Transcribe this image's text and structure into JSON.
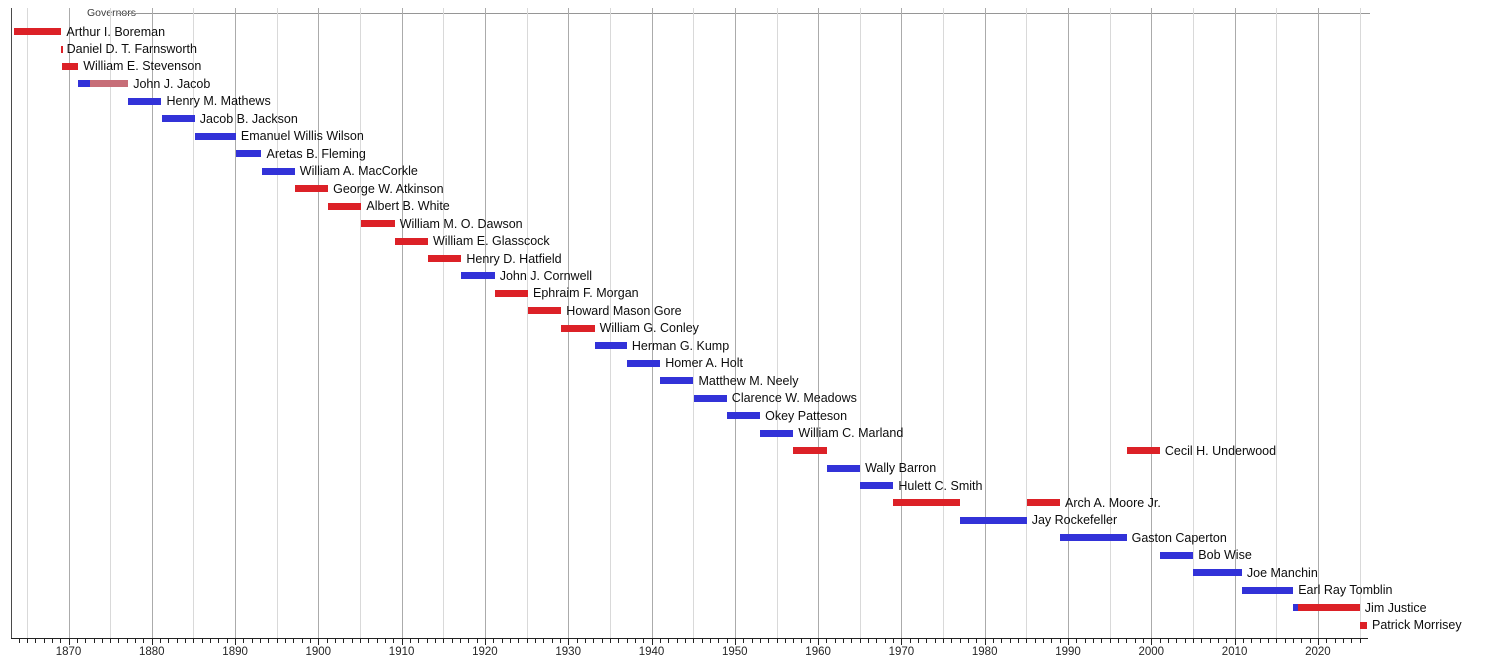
{
  "header": {
    "title": "Governors"
  },
  "chart_data": {
    "type": "bar",
    "subtype": "gantt-timeline",
    "title": "Governors",
    "xlabel": "",
    "ylabel": "",
    "grid": "vertical, every 5 years, darker each decade",
    "legend_position": "none",
    "axis": {
      "min_year": 1863.1,
      "max_year": 2025.9
    },
    "tick_years": [
      1870,
      1880,
      1890,
      1900,
      1910,
      1920,
      1930,
      1940,
      1950,
      1960,
      1970,
      1980,
      1990,
      2000,
      2010,
      2020
    ],
    "party_colors": {
      "R": "#dc2127",
      "D": "#3232d8",
      "I": "#c76e78"
    },
    "governors": [
      {
        "name": "Arthur I. Boreman",
        "terms": [
          {
            "start": 1863.47,
            "end": 1869.15,
            "party": "R"
          }
        ]
      },
      {
        "name": "Daniel D. T. Farnsworth",
        "terms": [
          {
            "start": 1869.15,
            "end": 1869.17,
            "party": "R"
          }
        ]
      },
      {
        "name": "William E. Stevenson",
        "terms": [
          {
            "start": 1869.17,
            "end": 1871.17,
            "party": "R"
          }
        ]
      },
      {
        "name": "John J. Jacob",
        "terms": [
          {
            "start": 1871.17,
            "end": 1872.6,
            "party": "D"
          },
          {
            "start": 1872.6,
            "end": 1877.17,
            "party": "I"
          }
        ]
      },
      {
        "name": "Henry M. Mathews",
        "terms": [
          {
            "start": 1877.17,
            "end": 1881.17,
            "party": "D"
          }
        ]
      },
      {
        "name": "Jacob B. Jackson",
        "terms": [
          {
            "start": 1881.17,
            "end": 1885.17,
            "party": "D"
          }
        ]
      },
      {
        "name": "Emanuel Willis Wilson",
        "terms": [
          {
            "start": 1885.17,
            "end": 1890.1,
            "party": "D"
          }
        ]
      },
      {
        "name": "Aretas B. Fleming",
        "terms": [
          {
            "start": 1890.1,
            "end": 1893.17,
            "party": "D"
          }
        ]
      },
      {
        "name": "William A. MacCorkle",
        "terms": [
          {
            "start": 1893.17,
            "end": 1897.17,
            "party": "D"
          }
        ]
      },
      {
        "name": "George W. Atkinson",
        "terms": [
          {
            "start": 1897.17,
            "end": 1901.17,
            "party": "R"
          }
        ]
      },
      {
        "name": "Albert B. White",
        "terms": [
          {
            "start": 1901.17,
            "end": 1905.17,
            "party": "R"
          }
        ]
      },
      {
        "name": "William M. O. Dawson",
        "terms": [
          {
            "start": 1905.17,
            "end": 1909.17,
            "party": "R"
          }
        ]
      },
      {
        "name": "William E. Glasscock",
        "terms": [
          {
            "start": 1909.17,
            "end": 1913.17,
            "party": "R"
          }
        ]
      },
      {
        "name": "Henry D. Hatfield",
        "terms": [
          {
            "start": 1913.17,
            "end": 1917.17,
            "party": "R"
          }
        ]
      },
      {
        "name": "John J. Cornwell",
        "terms": [
          {
            "start": 1917.17,
            "end": 1921.17,
            "party": "D"
          }
        ]
      },
      {
        "name": "Ephraim F. Morgan",
        "terms": [
          {
            "start": 1921.17,
            "end": 1925.17,
            "party": "R"
          }
        ]
      },
      {
        "name": "Howard Mason Gore",
        "terms": [
          {
            "start": 1925.17,
            "end": 1929.17,
            "party": "R"
          }
        ]
      },
      {
        "name": "William G. Conley",
        "terms": [
          {
            "start": 1929.17,
            "end": 1933.17,
            "party": "R"
          }
        ]
      },
      {
        "name": "Herman G. Kump",
        "terms": [
          {
            "start": 1933.17,
            "end": 1937.05,
            "party": "D"
          }
        ]
      },
      {
        "name": "Homer A. Holt",
        "terms": [
          {
            "start": 1937.05,
            "end": 1941.04,
            "party": "D"
          }
        ]
      },
      {
        "name": "Matthew M. Neely",
        "terms": [
          {
            "start": 1941.04,
            "end": 1945.04,
            "party": "D"
          }
        ]
      },
      {
        "name": "Clarence W. Meadows",
        "terms": [
          {
            "start": 1945.04,
            "end": 1949.04,
            "party": "D"
          }
        ]
      },
      {
        "name": "Okey Patteson",
        "terms": [
          {
            "start": 1949.04,
            "end": 1953.04,
            "party": "D"
          }
        ]
      },
      {
        "name": "William C. Marland",
        "terms": [
          {
            "start": 1953.04,
            "end": 1957.04,
            "party": "D"
          }
        ]
      },
      {
        "name": "Cecil H. Underwood",
        "terms": [
          {
            "start": 1957.04,
            "end": 1961.04,
            "party": "R"
          },
          {
            "start": 1997.04,
            "end": 2001.04,
            "party": "R"
          }
        ]
      },
      {
        "name": "Wally Barron",
        "terms": [
          {
            "start": 1961.04,
            "end": 1965.04,
            "party": "D"
          }
        ]
      },
      {
        "name": "Hulett C. Smith",
        "terms": [
          {
            "start": 1965.04,
            "end": 1969.04,
            "party": "D"
          }
        ]
      },
      {
        "name": "Arch A. Moore Jr.",
        "terms": [
          {
            "start": 1969.04,
            "end": 1977.04,
            "party": "R"
          },
          {
            "start": 1985.04,
            "end": 1989.04,
            "party": "R"
          }
        ]
      },
      {
        "name": "Jay Rockefeller",
        "terms": [
          {
            "start": 1977.04,
            "end": 1985.04,
            "party": "D"
          }
        ]
      },
      {
        "name": "Gaston Caperton",
        "terms": [
          {
            "start": 1989.04,
            "end": 1997.04,
            "party": "D"
          }
        ]
      },
      {
        "name": "Bob Wise",
        "terms": [
          {
            "start": 2001.04,
            "end": 2005.04,
            "party": "D"
          }
        ]
      },
      {
        "name": "Joe Manchin",
        "terms": [
          {
            "start": 2005.04,
            "end": 2010.88,
            "party": "D"
          }
        ]
      },
      {
        "name": "Earl Ray Tomblin",
        "terms": [
          {
            "start": 2010.88,
            "end": 2017.04,
            "party": "D"
          }
        ]
      },
      {
        "name": "Jim Justice",
        "terms": [
          {
            "start": 2017.04,
            "end": 2017.62,
            "party": "D"
          },
          {
            "start": 2017.62,
            "end": 2025.04,
            "party": "R"
          }
        ]
      },
      {
        "name": "Patrick Morrisey",
        "terms": [
          {
            "start": 2025.04,
            "end": 2025.9,
            "party": "R"
          }
        ]
      }
    ]
  }
}
